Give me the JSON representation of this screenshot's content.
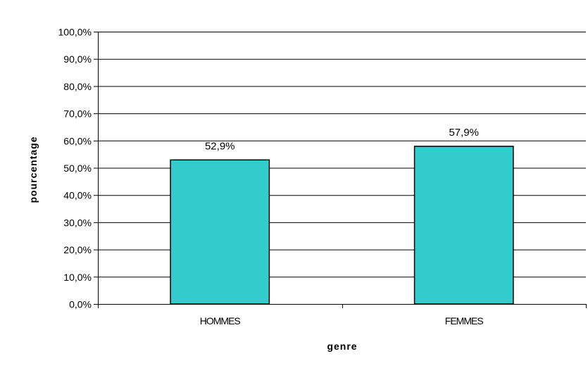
{
  "chart_data": {
    "type": "bar",
    "title": "",
    "xlabel": "genre",
    "ylabel": "pourcentage",
    "categories": [
      "HOMMES",
      "FEMMES"
    ],
    "values": [
      52.9,
      57.9
    ],
    "data_labels": [
      "52,9%",
      "57,9%"
    ],
    "ylim": [
      0,
      100
    ],
    "yticks": [
      0,
      10,
      20,
      30,
      40,
      50,
      60,
      70,
      80,
      90,
      100
    ],
    "ytick_labels": [
      "0,0%",
      "10,0%",
      "20,0%",
      "30,0%",
      "40,0%",
      "50,0%",
      "60,0%",
      "70,0%",
      "80,0%",
      "90,0%",
      "100,0%"
    ],
    "grid": "horizontal",
    "legend": "none",
    "colors": {
      "bar_fill": "#33CCCC",
      "bar_stroke": "#000000",
      "grid": "#000000",
      "frame": "#000000"
    }
  }
}
